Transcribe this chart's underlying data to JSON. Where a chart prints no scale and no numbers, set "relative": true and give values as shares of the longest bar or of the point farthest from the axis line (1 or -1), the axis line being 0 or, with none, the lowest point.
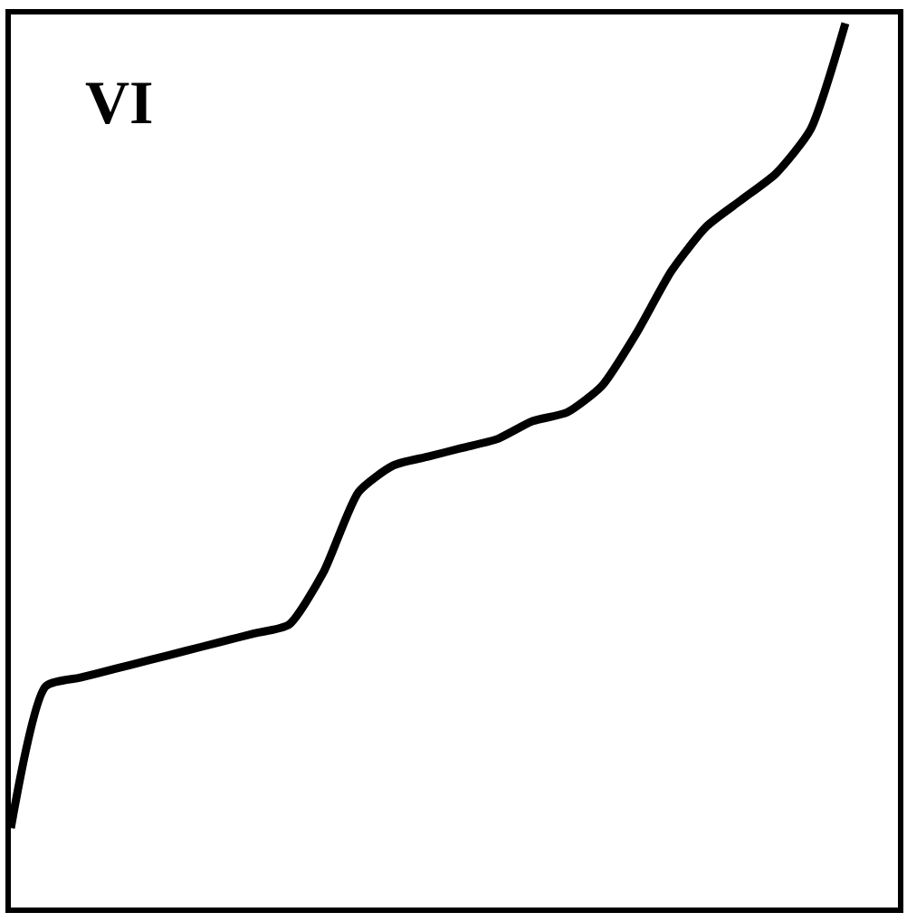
{
  "chart_data": {
    "type": "line",
    "relative": true,
    "annotations": [
      "VI"
    ],
    "categories": [
      null,
      null,
      null,
      null,
      null,
      null,
      null,
      null,
      null,
      null,
      null,
      null,
      null,
      null,
      null,
      null,
      null,
      null,
      null,
      null,
      null,
      null,
      null,
      null,
      null
    ],
    "series": [
      {
        "color": "#000000",
        "values": [
          0.09,
          0.25,
          0.26,
          0.27,
          0.28,
          0.29,
          0.3,
          0.31,
          0.32,
          0.38,
          0.47,
          0.5,
          0.51,
          0.52,
          0.53,
          0.55,
          0.56,
          0.59,
          0.65,
          0.72,
          0.77,
          0.8,
          0.83,
          0.88,
          1
        ]
      }
    ]
  }
}
